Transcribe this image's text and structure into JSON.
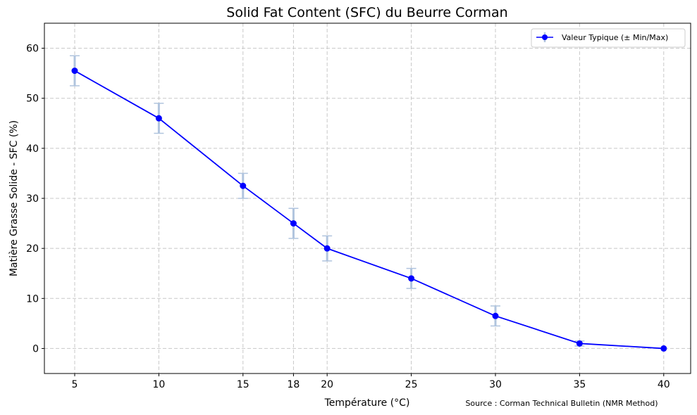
{
  "chart_data": {
    "type": "line",
    "title": "Solid Fat Content (SFC) du Beurre Corman",
    "xlabel": "Température (°C)",
    "ylabel": "Matière Grasse Solide - SFC (%)",
    "x": [
      5,
      10,
      15,
      18,
      20,
      25,
      30,
      35,
      40
    ],
    "series": [
      {
        "name": "Valeur Typique (± Min/Max)",
        "values": [
          55.5,
          46,
          32.5,
          25,
          20,
          14,
          6.5,
          1,
          0
        ],
        "min": [
          52.5,
          43,
          30,
          22,
          17.5,
          12,
          4.5,
          0.5,
          0
        ],
        "max": [
          58.5,
          49,
          35,
          28,
          22.5,
          16,
          8.5,
          1.5,
          0
        ],
        "color": "#0000ff",
        "errorbar_color": "#b0c4de"
      }
    ],
    "xticks": [
      5,
      10,
      15,
      18,
      20,
      25,
      30,
      35,
      40
    ],
    "yticks": [
      0,
      10,
      20,
      30,
      40,
      50,
      60
    ],
    "xlim": [
      3.2,
      41.6
    ],
    "ylim": [
      -5,
      65
    ],
    "grid": true,
    "legend_position": "upper right",
    "annotation": "Source : Corman Technical Bulletin (NMR Method)"
  }
}
